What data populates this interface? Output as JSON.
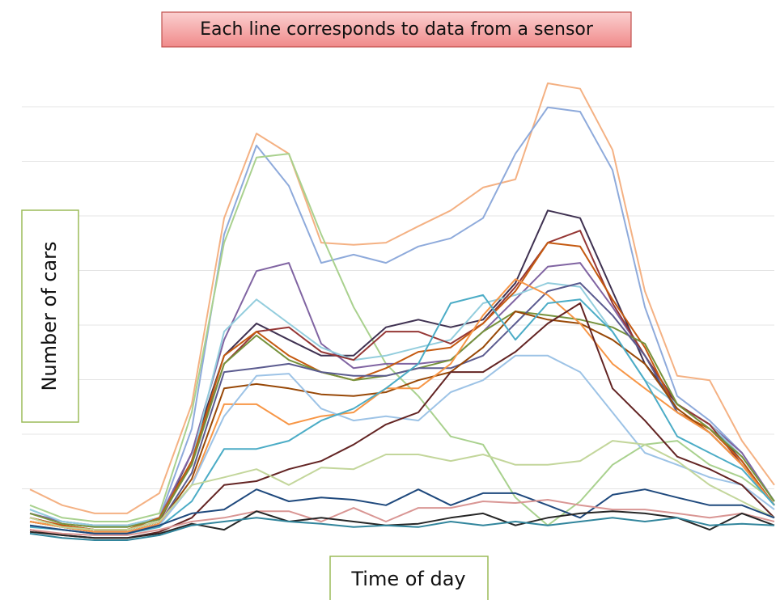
{
  "chart_data": {
    "type": "line",
    "title": "Each line corresponds to data from a sensor",
    "y_label": "Number of cars",
    "x_label": "Time of day",
    "categories": [
      null,
      null,
      null,
      null,
      null,
      null,
      null,
      null,
      null,
      null,
      null,
      null,
      null,
      null,
      null,
      null,
      null,
      null,
      null,
      null,
      null,
      null,
      null,
      null
    ],
    "ylim": [
      0,
      8.8
    ],
    "gridlines": [
      1,
      2,
      3,
      4,
      5,
      6,
      7,
      8
    ],
    "series": [
      {
        "color": "#f4b183",
        "values": [
          0.99,
          0.7,
          0.55,
          0.55,
          0.92,
          2.55,
          5.96,
          7.51,
          7.14,
          5.51,
          5.47,
          5.51,
          5.81,
          6.1,
          6.52,
          6.67,
          8.43,
          8.33,
          7.21,
          4.62,
          3.07,
          2.99,
          1.88,
          1.07
        ]
      },
      {
        "color": "#8eaadb",
        "values": [
          0.62,
          0.4,
          0.33,
          0.33,
          0.47,
          2.1,
          5.66,
          7.29,
          6.55,
          5.14,
          5.29,
          5.14,
          5.44,
          5.59,
          5.96,
          7.14,
          7.99,
          7.91,
          6.84,
          4.33,
          2.7,
          2.25,
          1.66,
          0.77
        ]
      },
      {
        "color": "#a9d18e",
        "values": [
          0.7,
          0.47,
          0.4,
          0.4,
          0.55,
          2.4,
          5.51,
          7.07,
          7.14,
          5.66,
          4.33,
          3.29,
          2.7,
          1.96,
          1.81,
          0.84,
          0.33,
          0.77,
          1.44,
          1.81,
          1.88,
          1.44,
          1.21,
          0.77
        ]
      },
      {
        "color": "#3f3151",
        "values": [
          0.47,
          0.33,
          0.25,
          0.25,
          0.4,
          1.66,
          3.44,
          4.03,
          3.73,
          3.44,
          3.44,
          3.96,
          4.1,
          3.96,
          4.1,
          4.77,
          6.1,
          5.96,
          4.62,
          3.29,
          2.55,
          2.18,
          1.51,
          0.7
        ]
      },
      {
        "color": "#8064a2",
        "values": [
          0.55,
          0.4,
          0.33,
          0.33,
          0.47,
          1.66,
          3.73,
          4.99,
          5.14,
          3.66,
          3.21,
          3.29,
          3.29,
          3.36,
          3.88,
          4.47,
          5.07,
          5.14,
          4.33,
          3.44,
          2.55,
          2.18,
          1.66,
          0.77
        ]
      },
      {
        "color": "#93cddd",
        "values": [
          0.62,
          0.4,
          0.33,
          0.33,
          0.47,
          1.51,
          3.88,
          4.47,
          4.03,
          3.59,
          3.36,
          3.44,
          3.59,
          3.73,
          4.4,
          4.55,
          4.77,
          4.7,
          3.88,
          2.99,
          2.55,
          2.18,
          1.59,
          0.77
        ]
      },
      {
        "color": "#953735",
        "values": [
          0.47,
          0.33,
          0.25,
          0.25,
          0.4,
          1.51,
          3.29,
          3.88,
          3.96,
          3.51,
          3.36,
          3.88,
          3.88,
          3.66,
          4.03,
          4.7,
          5.51,
          5.73,
          4.4,
          3.44,
          2.55,
          2.18,
          1.44,
          0.7
        ]
      },
      {
        "color": "#c55a11",
        "values": [
          0.47,
          0.33,
          0.25,
          0.25,
          0.47,
          1.51,
          3.44,
          3.88,
          3.44,
          3.14,
          2.99,
          3.21,
          3.51,
          3.59,
          4.03,
          4.62,
          5.51,
          5.44,
          4.47,
          3.59,
          2.4,
          2.1,
          1.51,
          0.7
        ]
      },
      {
        "color": "#76923c",
        "values": [
          0.55,
          0.36,
          0.3,
          0.3,
          0.44,
          1.44,
          3.29,
          3.81,
          3.36,
          3.14,
          2.99,
          3.07,
          3.21,
          3.36,
          3.88,
          4.25,
          4.18,
          4.1,
          3.96,
          3.66,
          2.55,
          2.1,
          1.59,
          0.77
        ]
      },
      {
        "color": "#5b5b8f",
        "values": [
          0.4,
          0.3,
          0.21,
          0.21,
          0.36,
          1.29,
          3.14,
          3.21,
          3.29,
          3.14,
          3.07,
          3.07,
          3.21,
          3.21,
          3.44,
          4.03,
          4.62,
          4.77,
          4.18,
          3.44,
          2.4,
          2.03,
          1.44,
          0.7
        ]
      },
      {
        "color": "#984807",
        "values": [
          0.4,
          0.3,
          0.21,
          0.21,
          0.36,
          1.18,
          2.84,
          2.92,
          2.84,
          2.73,
          2.7,
          2.77,
          2.99,
          3.14,
          3.59,
          4.25,
          4.1,
          4.03,
          3.73,
          3.29,
          2.47,
          2.03,
          1.44,
          0.7
        ]
      },
      {
        "color": "#f79646",
        "values": [
          0.4,
          0.3,
          0.21,
          0.21,
          0.36,
          1.07,
          2.55,
          2.55,
          2.18,
          2.33,
          2.4,
          2.84,
          2.84,
          3.29,
          4.18,
          4.84,
          4.55,
          4.03,
          3.29,
          2.84,
          2.4,
          2.03,
          1.44,
          0.7
        ]
      },
      {
        "color": "#9dc3e6",
        "values": [
          0.33,
          0.25,
          0.18,
          0.18,
          0.33,
          1.07,
          2.33,
          3.07,
          3.11,
          2.47,
          2.25,
          2.33,
          2.25,
          2.77,
          2.99,
          3.44,
          3.44,
          3.14,
          2.4,
          1.66,
          1.44,
          1.21,
          1.07,
          0.62
        ]
      },
      {
        "color": "#4bacc6",
        "values": [
          0.3,
          0.25,
          0.18,
          0.18,
          0.3,
          0.77,
          1.73,
          1.73,
          1.88,
          2.25,
          2.47,
          2.84,
          3.29,
          4.4,
          4.55,
          3.73,
          4.4,
          4.47,
          3.88,
          2.99,
          1.96,
          1.66,
          1.36,
          0.7
        ]
      },
      {
        "color": "#632423",
        "values": [
          0.25,
          0.15,
          0.1,
          0.1,
          0.21,
          0.47,
          1.07,
          1.14,
          1.36,
          1.51,
          1.81,
          2.18,
          2.4,
          3.14,
          3.14,
          3.51,
          4.03,
          4.4,
          2.84,
          2.25,
          1.59,
          1.36,
          1.07,
          0.47
        ]
      },
      {
        "color": "#c3d69b",
        "values": [
          0.47,
          0.3,
          0.25,
          0.25,
          0.4,
          1.07,
          1.21,
          1.36,
          1.07,
          1.39,
          1.36,
          1.63,
          1.63,
          1.51,
          1.63,
          1.44,
          1.44,
          1.51,
          1.88,
          1.81,
          1.51,
          1.07,
          0.77,
          0.47
        ]
      },
      {
        "color": "#1f497d",
        "values": [
          0.33,
          0.25,
          0.18,
          0.18,
          0.33,
          0.55,
          0.62,
          0.99,
          0.77,
          0.84,
          0.8,
          0.7,
          0.99,
          0.7,
          0.92,
          0.92,
          0.7,
          0.47,
          0.89,
          0.99,
          0.84,
          0.7,
          0.7,
          0.47
        ]
      },
      {
        "color": "#d99694",
        "values": [
          0.25,
          0.18,
          0.15,
          0.15,
          0.25,
          0.4,
          0.47,
          0.59,
          0.59,
          0.4,
          0.65,
          0.4,
          0.65,
          0.65,
          0.77,
          0.74,
          0.8,
          0.7,
          0.62,
          0.62,
          0.55,
          0.47,
          0.55,
          0.4
        ]
      },
      {
        "color": "#262626",
        "values": [
          0.21,
          0.15,
          0.1,
          0.1,
          0.18,
          0.36,
          0.25,
          0.59,
          0.4,
          0.47,
          0.4,
          0.33,
          0.36,
          0.47,
          0.55,
          0.33,
          0.47,
          0.55,
          0.59,
          0.55,
          0.47,
          0.25,
          0.55,
          0.33
        ]
      },
      {
        "color": "#31859c",
        "values": [
          0.18,
          0.1,
          0.06,
          0.06,
          0.15,
          0.33,
          0.4,
          0.47,
          0.4,
          0.36,
          0.3,
          0.33,
          0.3,
          0.4,
          0.33,
          0.4,
          0.33,
          0.4,
          0.47,
          0.4,
          0.47,
          0.33,
          0.36,
          0.33
        ]
      }
    ]
  }
}
